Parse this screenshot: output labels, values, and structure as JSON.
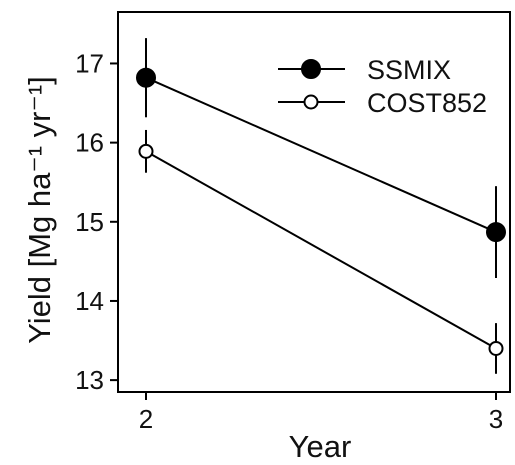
{
  "chart_data": {
    "type": "line",
    "title": "",
    "xlabel": "Year",
    "ylabel": "Yield [Mg ha⁻¹ yr⁻¹]",
    "x": [
      2,
      3
    ],
    "x_ticks": [
      "2",
      "3"
    ],
    "xlim": [
      1.92,
      3.04
    ],
    "ylim": [
      12.85,
      17.65
    ],
    "y_ticks": [
      13,
      14,
      15,
      16,
      17
    ],
    "grid": false,
    "legend_position": "top-right",
    "series": [
      {
        "name": "SSMIX",
        "marker": "filled-circle",
        "color": "#000000",
        "values": [
          16.82,
          14.87
        ],
        "error": [
          0.5,
          0.58
        ]
      },
      {
        "name": "COST852",
        "marker": "open-circle",
        "color": "#000000",
        "values": [
          15.89,
          13.4
        ],
        "error": [
          0.27,
          0.32
        ]
      }
    ]
  }
}
